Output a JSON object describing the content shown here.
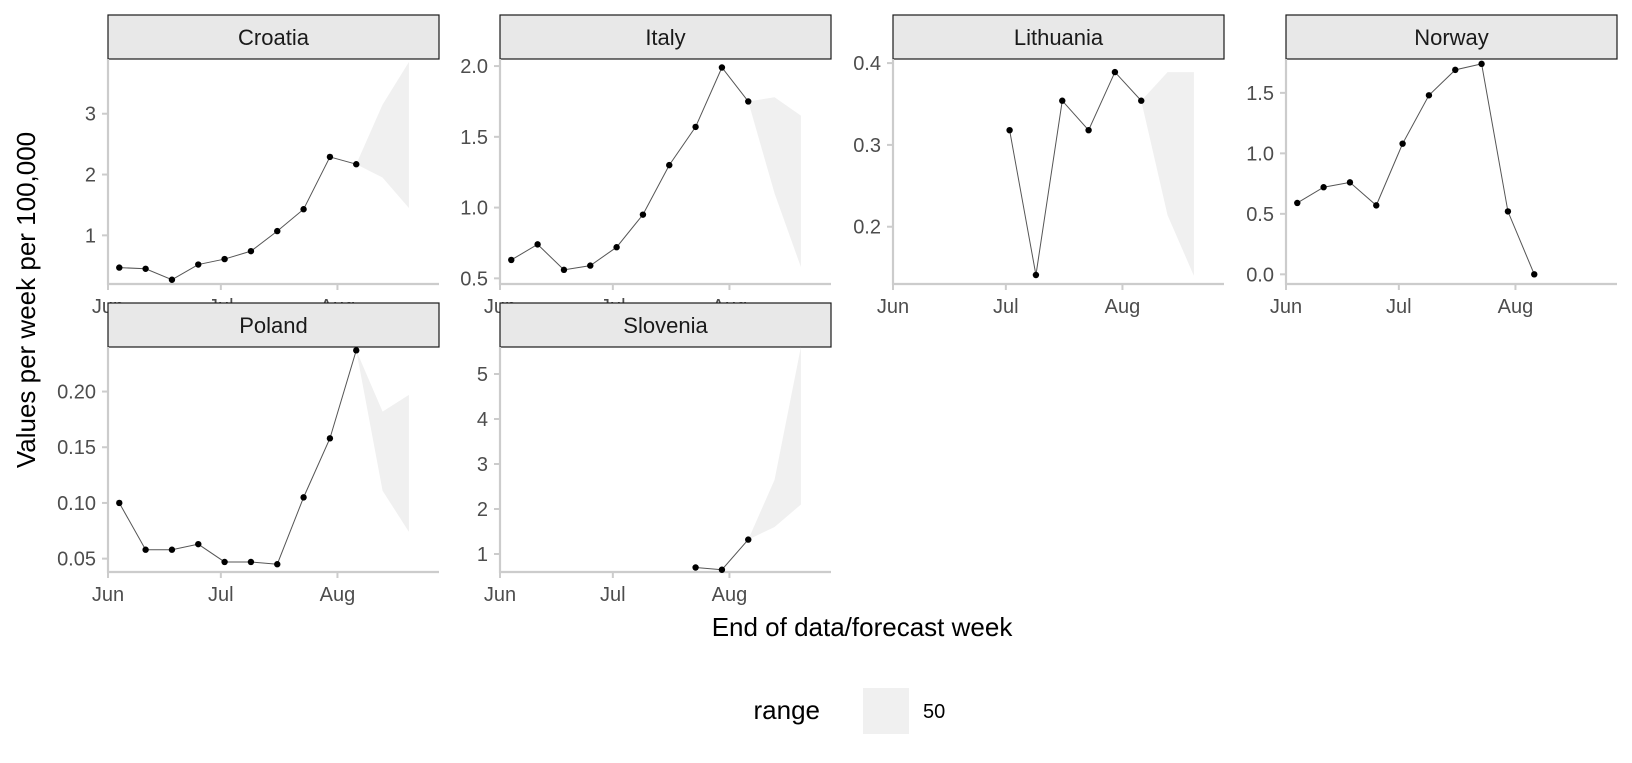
{
  "chart_data": {
    "type": "line",
    "facet_by": "location",
    "xlabel": "End of data/forecast week",
    "ylabel": "Values per week per 100,000",
    "x_range": [
      "2021-06-01",
      "2021-08-28"
    ],
    "x_ticks": [
      {
        "date": "2021-06-01",
        "label": "Jun"
      },
      {
        "date": "2021-07-01",
        "label": "Jul"
      },
      {
        "date": "2021-08-01",
        "label": "Aug"
      }
    ],
    "legend": {
      "title": "range",
      "position": "bottom",
      "items": [
        {
          "label": "50",
          "color": "#f0f0f0"
        }
      ]
    },
    "colors": {
      "ribbon": "#f0f0f0",
      "line": "#555555",
      "point": "#000000",
      "strip": "#e8e8e8"
    },
    "panels": [
      {
        "title": "Croatia",
        "ylim": [
          0.2,
          3.9
        ],
        "y_ticks": [
          1,
          2,
          3
        ],
        "y_tick_labels": [
          "1",
          "2",
          "3"
        ],
        "observed": [
          {
            "date": "2021-06-04",
            "value": 0.47
          },
          {
            "date": "2021-06-11",
            "value": 0.45
          },
          {
            "date": "2021-06-18",
            "value": 0.27
          },
          {
            "date": "2021-06-25",
            "value": 0.52
          },
          {
            "date": "2021-07-02",
            "value": 0.61
          },
          {
            "date": "2021-07-09",
            "value": 0.74
          },
          {
            "date": "2021-07-16",
            "value": 1.07
          },
          {
            "date": "2021-07-23",
            "value": 1.43
          },
          {
            "date": "2021-07-30",
            "value": 2.29
          },
          {
            "date": "2021-08-06",
            "value": 2.17
          }
        ],
        "forecast_range": [
          {
            "date": "2021-08-06",
            "lower": 2.17,
            "upper": 2.17
          },
          {
            "date": "2021-08-13",
            "lower": 1.95,
            "upper": 3.15
          },
          {
            "date": "2021-08-20",
            "lower": 1.45,
            "upper": 3.85
          }
        ]
      },
      {
        "title": "Italy",
        "ylim": [
          0.46,
          2.05
        ],
        "y_ticks": [
          0.5,
          1.0,
          1.5,
          2.0
        ],
        "y_tick_labels": [
          "0.5",
          "1.0",
          "1.5",
          "2.0"
        ],
        "observed": [
          {
            "date": "2021-06-04",
            "value": 0.63
          },
          {
            "date": "2021-06-11",
            "value": 0.74
          },
          {
            "date": "2021-06-18",
            "value": 0.56
          },
          {
            "date": "2021-06-25",
            "value": 0.59
          },
          {
            "date": "2021-07-02",
            "value": 0.72
          },
          {
            "date": "2021-07-09",
            "value": 0.95
          },
          {
            "date": "2021-07-16",
            "value": 1.3
          },
          {
            "date": "2021-07-23",
            "value": 1.57
          },
          {
            "date": "2021-07-30",
            "value": 1.99
          },
          {
            "date": "2021-08-06",
            "value": 1.75
          }
        ],
        "forecast_range": [
          {
            "date": "2021-08-06",
            "lower": 1.75,
            "upper": 1.75
          },
          {
            "date": "2021-08-13",
            "lower": 1.1,
            "upper": 1.78
          },
          {
            "date": "2021-08-20",
            "lower": 0.58,
            "upper": 1.65
          }
        ]
      },
      {
        "title": "Lithuania",
        "ylim": [
          0.13,
          0.405
        ],
        "y_ticks": [
          0.2,
          0.3,
          0.4
        ],
        "y_tick_labels": [
          "0.2",
          "0.3",
          "0.4"
        ],
        "observed": [
          {
            "date": "2021-07-02",
            "value": 0.318
          },
          {
            "date": "2021-07-09",
            "value": 0.141
          },
          {
            "date": "2021-07-16",
            "value": 0.354
          },
          {
            "date": "2021-07-23",
            "value": 0.318
          },
          {
            "date": "2021-07-30",
            "value": 0.389
          },
          {
            "date": "2021-08-06",
            "value": 0.354
          }
        ],
        "forecast_range": [
          {
            "date": "2021-08-06",
            "lower": 0.354,
            "upper": 0.354
          },
          {
            "date": "2021-08-13",
            "lower": 0.214,
            "upper": 0.389
          },
          {
            "date": "2021-08-20",
            "lower": 0.14,
            "upper": 0.389
          }
        ]
      },
      {
        "title": "Norway",
        "ylim": [
          -0.08,
          1.78
        ],
        "y_ticks": [
          0.0,
          0.5,
          1.0,
          1.5
        ],
        "y_tick_labels": [
          "0.0",
          "0.5",
          "1.0",
          "1.5"
        ],
        "observed": [
          {
            "date": "2021-06-04",
            "value": 0.59
          },
          {
            "date": "2021-06-11",
            "value": 0.72
          },
          {
            "date": "2021-06-18",
            "value": 0.76
          },
          {
            "date": "2021-06-25",
            "value": 0.57
          },
          {
            "date": "2021-07-02",
            "value": 1.08
          },
          {
            "date": "2021-07-09",
            "value": 1.48
          },
          {
            "date": "2021-07-16",
            "value": 1.69
          },
          {
            "date": "2021-07-23",
            "value": 1.74
          },
          {
            "date": "2021-07-30",
            "value": 0.52
          },
          {
            "date": "2021-08-06",
            "value": 0.0
          }
        ],
        "forecast_range": []
      },
      {
        "title": "Poland",
        "ylim": [
          0.038,
          0.24
        ],
        "y_ticks": [
          0.05,
          0.1,
          0.15,
          0.2
        ],
        "y_tick_labels": [
          "0.05",
          "0.10",
          "0.15",
          "0.20"
        ],
        "observed": [
          {
            "date": "2021-06-04",
            "value": 0.1
          },
          {
            "date": "2021-06-11",
            "value": 0.058
          },
          {
            "date": "2021-06-18",
            "value": 0.058
          },
          {
            "date": "2021-06-25",
            "value": 0.063
          },
          {
            "date": "2021-07-02",
            "value": 0.047
          },
          {
            "date": "2021-07-09",
            "value": 0.047
          },
          {
            "date": "2021-07-16",
            "value": 0.045
          },
          {
            "date": "2021-07-23",
            "value": 0.105
          },
          {
            "date": "2021-07-30",
            "value": 0.158
          },
          {
            "date": "2021-08-06",
            "value": 0.237
          }
        ],
        "forecast_range": [
          {
            "date": "2021-08-06",
            "lower": 0.237,
            "upper": 0.237
          },
          {
            "date": "2021-08-13",
            "lower": 0.111,
            "upper": 0.182
          },
          {
            "date": "2021-08-20",
            "lower": 0.074,
            "upper": 0.197
          }
        ]
      },
      {
        "title": "Slovenia",
        "ylim": [
          0.6,
          5.6
        ],
        "y_ticks": [
          1,
          2,
          3,
          4,
          5
        ],
        "y_tick_labels": [
          "1",
          "2",
          "3",
          "4",
          "5"
        ],
        "observed": [
          {
            "date": "2021-07-23",
            "value": 0.7
          },
          {
            "date": "2021-07-30",
            "value": 0.65
          },
          {
            "date": "2021-08-06",
            "value": 1.32
          }
        ],
        "forecast_range": [
          {
            "date": "2021-08-06",
            "lower": 1.32,
            "upper": 1.32
          },
          {
            "date": "2021-08-13",
            "lower": 1.6,
            "upper": 2.65
          },
          {
            "date": "2021-08-20",
            "lower": 2.1,
            "upper": 5.6
          }
        ]
      }
    ]
  }
}
